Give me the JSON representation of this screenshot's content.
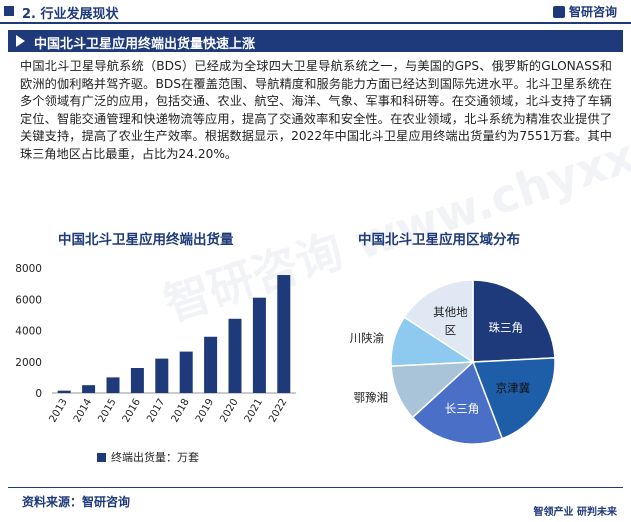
{
  "header": {
    "section": "2. 行业发展现状",
    "logo": "智研咨询"
  },
  "banner": {
    "title": "中国北斗卫星应用终端出货量快速上涨"
  },
  "paragraph": "中国北斗卫星导航系统（BDS）已经成为全球四大卫星导航系统之一，与美国的GPS、俄罗斯的GLONASS和欧洲的伽利略并驾齐驱。BDS在覆盖范围、导航精度和服务能力方面已经达到国际先进水平。北斗卫星系统在多个领域有广泛的应用，包括交通、农业、航空、海洋、气象、军事和科研等。在交通领域，北斗支持了车辆定位、智能交通管理和快递物流等应用，提高了交通效率和安全性。在农业领域，北斗系统为精准农业提供了关键支持，提高了农业生产效率。根据数据显示，2022年中国北斗卫星应用终端出货量约为7551万套。其中珠三角地区占比最重，占比为24.20%。",
  "colors": {
    "accent": "#1f3a7a"
  },
  "chart_data": [
    {
      "type": "bar",
      "title": "中国北斗卫星应用终端出货量",
      "categories": [
        "2013",
        "2014",
        "2015",
        "2016",
        "2017",
        "2018",
        "2019",
        "2020",
        "2021",
        "2022"
      ],
      "series": [
        {
          "name": "终端出货量：万套",
          "values": [
            150,
            500,
            1000,
            1600,
            2200,
            2650,
            3600,
            4750,
            6100,
            7551
          ]
        }
      ],
      "ylim": [
        0,
        8000
      ],
      "yticks": [
        "0",
        "2000",
        "4000",
        "6000",
        "8000"
      ],
      "grid": false,
      "legend": "bottom",
      "color": "#1f3a7a"
    },
    {
      "type": "pie",
      "title": "中国北斗卫星应用区域分布",
      "labels": [
        "珠三角",
        "京津冀",
        "长三角",
        "鄂豫湘",
        "川陕渝",
        "其他地区"
      ],
      "values": [
        24.2,
        20.0,
        19.0,
        11.0,
        10.0,
        15.8
      ],
      "colors": [
        "#1f3a7a",
        "#1e5ea8",
        "#4a6fc7",
        "#a9c3d9",
        "#8ecaf0",
        "#dfe8f3"
      ],
      "legend": "none"
    }
  ],
  "footer": {
    "source": "资料来源：智研咨询",
    "slogan": "智领产业  研判未来"
  },
  "watermark": "智研咨询 www.chyxx.com"
}
